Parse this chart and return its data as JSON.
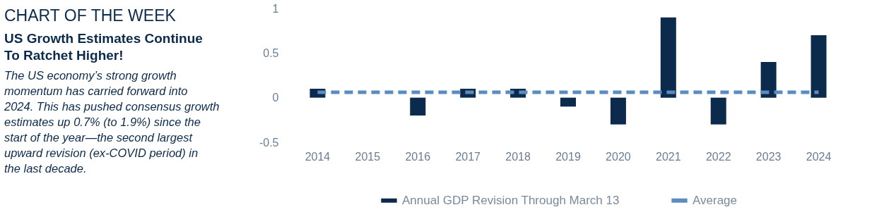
{
  "chart_data": {
    "type": "bar",
    "title": "CHART OF THE WEEK",
    "subtitle": "US Growth Estimates Continue To Ratchet Higher!",
    "annotations": [
      "The US economy’s strong growth momentum has carried forward into 2024. This has pushed consensus growth estimates up 0.7% (to 1.9%) since the start of the year—the second largest upward revision (ex-COVID period) in the last decade."
    ],
    "categories": [
      "2014",
      "2015",
      "2016",
      "2017",
      "2018",
      "2019",
      "2020",
      "2021",
      "2022",
      "2023",
      "2024"
    ],
    "series": [
      {
        "name": "Annual GDP Revision Through March 13",
        "color": "#0c2a4b",
        "values": [
          0.1,
          0,
          -0.2,
          0.1,
          0.1,
          -0.1,
          -0.3,
          0.9,
          -0.3,
          0.4,
          0.7
        ]
      },
      {
        "name": "Average",
        "type": "line",
        "color": "#5b8cbf",
        "line_style": "dashed",
        "values": [
          0.06,
          0.06,
          0.06,
          0.06,
          0.06,
          0.06,
          0.06,
          0.06,
          0.06,
          0.06,
          0.06
        ]
      }
    ],
    "ylim": [
      -0.5,
      1
    ],
    "yticks": [
      -0.5,
      0,
      0.5,
      1
    ],
    "grid": false,
    "legend": "bottom"
  }
}
